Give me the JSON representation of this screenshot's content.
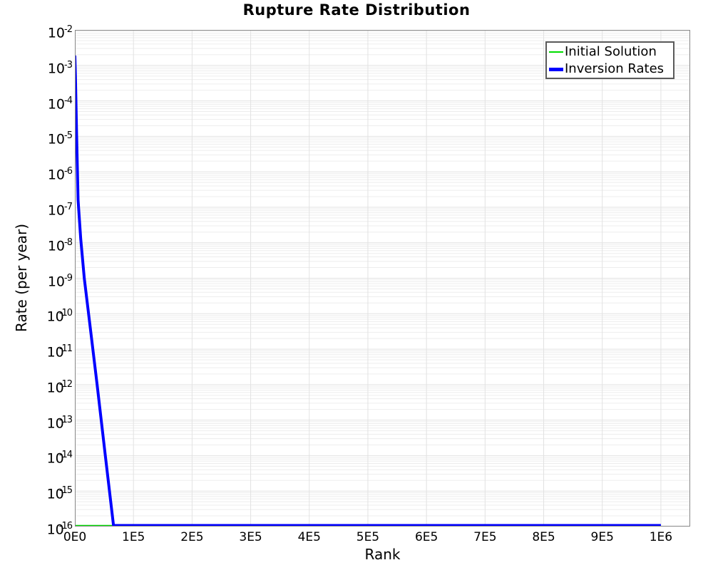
{
  "chart_data": {
    "type": "line",
    "title": "Rupture Rate Distribution",
    "xlabel": "Rank",
    "ylabel": "Rate (per year)",
    "x_scale": "linear",
    "y_scale": "log",
    "xlim": [
      0,
      1050000
    ],
    "ylim": [
      1e-16,
      0.01
    ],
    "x_ticks": [
      {
        "value": 0,
        "label": "0E0"
      },
      {
        "value": 100000,
        "label": "1E5"
      },
      {
        "value": 200000,
        "label": "2E5"
      },
      {
        "value": 300000,
        "label": "3E5"
      },
      {
        "value": 400000,
        "label": "4E5"
      },
      {
        "value": 500000,
        "label": "5E5"
      },
      {
        "value": 600000,
        "label": "6E5"
      },
      {
        "value": 700000,
        "label": "7E5"
      },
      {
        "value": 800000,
        "label": "8E5"
      },
      {
        "value": 900000,
        "label": "9E5"
      },
      {
        "value": 1000000,
        "label": "1E6"
      }
    ],
    "y_tick_exponents": [
      -2,
      -3,
      -4,
      -5,
      -6,
      -7,
      -8,
      -9,
      -10,
      -11,
      -12,
      -13,
      -14,
      -15,
      -16
    ],
    "grid": {
      "horizontal_log_minor": true,
      "vertical_major": true,
      "minor_color": "#ededed",
      "major_color": "#e2e2e2"
    },
    "border_color": "#878787",
    "legend": {
      "position": "top-right"
    },
    "series": [
      {
        "name": "Initial Solution",
        "color": "#00dd00",
        "stroke_width": 1.5,
        "points": [
          [
            0,
            1e-16
          ],
          [
            1000000,
            1e-16
          ]
        ]
      },
      {
        "name": "Inversion Rates",
        "color": "#0000ff",
        "stroke_width": 4,
        "points": [
          [
            0,
            0.0019
          ],
          [
            1000,
            0.0005
          ],
          [
            3000,
            1e-05
          ],
          [
            5500,
            1.6e-07
          ],
          [
            10000,
            1.3e-08
          ],
          [
            16000,
            1e-09
          ],
          [
            27000,
            3.2e-11
          ],
          [
            38000,
            1e-12
          ],
          [
            52000,
            1e-14
          ],
          [
            66000,
            1e-16
          ],
          [
            1000000,
            1e-16
          ]
        ]
      }
    ]
  }
}
